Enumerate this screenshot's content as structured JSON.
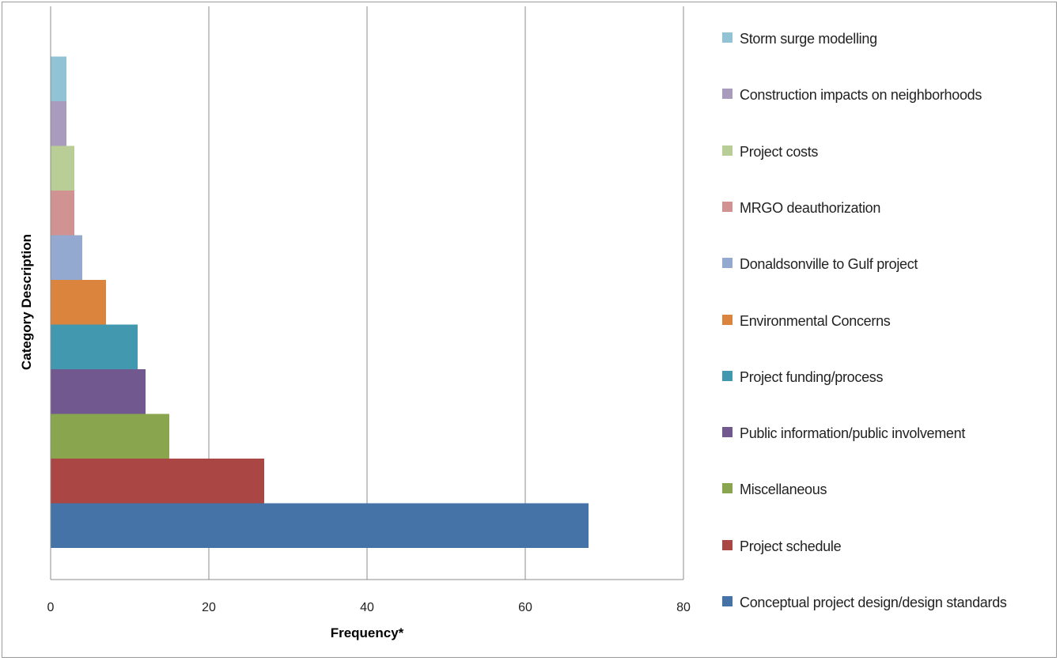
{
  "chart_data": {
    "type": "bar",
    "orientation": "horizontal",
    "xlabel": "Frequency*",
    "ylabel": "Category Description",
    "xlim": [
      0,
      80
    ],
    "xticks": [
      0,
      20,
      40,
      60,
      80
    ],
    "grid": "vertical",
    "legend_position": "right",
    "categories": [
      "Conceptual project design/design standards",
      "Project schedule",
      "Miscellaneous",
      "Public information/public involvement",
      "Project funding/process",
      "Environmental Concerns",
      "Donaldsonville to Gulf project",
      "MRGO deauthorization",
      "Project costs",
      "Construction impacts on neighborhoods",
      "Storm surge modelling"
    ],
    "values": [
      68,
      27,
      15,
      12,
      11,
      7,
      4,
      3,
      3,
      2,
      2
    ],
    "colors": [
      "#4572A7",
      "#AA4643",
      "#89A54E",
      "#71588F",
      "#4198AF",
      "#DB843D",
      "#93A9CF",
      "#D19392",
      "#B9CD96",
      "#A99BBD",
      "#91C3D5"
    ]
  }
}
